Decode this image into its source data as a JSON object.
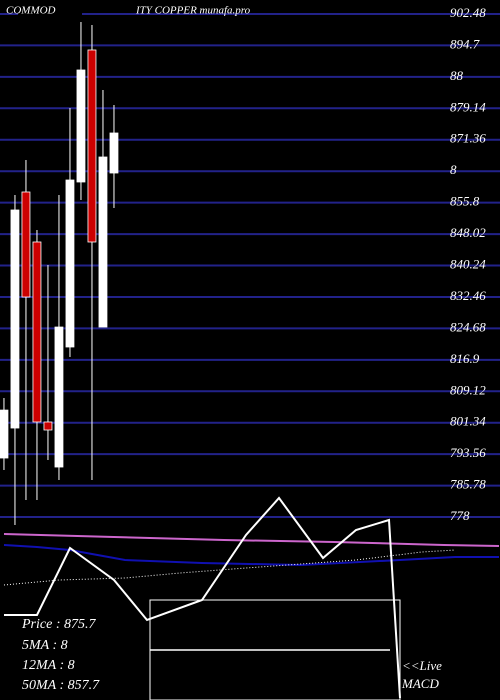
{
  "chart_data": {
    "type": "candlestick",
    "title": [
      "COMMOD",
      "ITY COPPER munafa.pro"
    ],
    "x": [
      0,
      1,
      2,
      3,
      4,
      5,
      6,
      7,
      8,
      9,
      10
    ],
    "open": [
      792.61,
      800.03,
      858.43,
      846.06,
      801.52,
      790.38,
      820.08,
      860.91,
      893.57,
      825.02,
      863.13
    ],
    "close": [
      804.47,
      853.98,
      832.45,
      801.52,
      799.54,
      825.02,
      861.4,
      888.62,
      846.06,
      867.09,
      873.03
    ],
    "high": [
      807.46,
      857.69,
      866.35,
      849.03,
      840.37,
      857.69,
      879.22,
      905.94,
      899.76,
      883.67,
      879.96
    ],
    "low": [
      789.64,
      776.03,
      782.21,
      782.21,
      792.11,
      787.16,
      817.6,
      856.45,
      787.16,
      825.02,
      854.47
    ],
    "up_color": "#ffffff",
    "down_color": "#cc0000",
    "lines": [
      {
        "color": "#cc66cc",
        "style": "solid",
        "x": [
          0,
          10,
          20,
          30,
          40,
          45
        ],
        "values": [
          773.8,
          773.06,
          772.32,
          771.82,
          771.08,
          770.83
        ]
      },
      {
        "color": "#1010b0",
        "style": "solid",
        "x": [
          0,
          3,
          6,
          9,
          11,
          18,
          27,
          36,
          41,
          45
        ],
        "values": [
          771.08,
          770.58,
          769.84,
          768.36,
          767.37,
          766.62,
          766.13,
          767.37,
          768.11,
          768.11
        ]
      },
      {
        "color": "#ffffff",
        "style": "dotted",
        "x": [
          0,
          5,
          11,
          16,
          22,
          32,
          38,
          41
        ],
        "values": [
          761.18,
          762.42,
          762.91,
          764.15,
          765.39,
          767.37,
          769.35,
          769.84
        ]
      },
      {
        "color": "#ffffff",
        "style": "solid",
        "x": [
          0,
          3,
          6,
          10,
          13,
          18,
          22,
          25,
          29,
          32,
          35,
          36
        ],
        "values": [
          753.76,
          753.76,
          770.34,
          762.42,
          752.52,
          757.47,
          773.55,
          782.71,
          767.86,
          774.79,
          777.27,
          733.22
        ]
      }
    ],
    "xlim": [
      -0.36,
      45.09
    ],
    "ylim": [
      732.73,
      905.94
    ],
    "yticks": [
      902.48,
      894.7,
      {
        "value": 886.92,
        "label": "88"
      },
      879.14,
      871.36,
      {
        "value": 863.58,
        "label": "8"
      },
      855.8,
      848.02,
      840.24,
      832.46,
      824.68,
      816.9,
      809.12,
      801.34,
      793.56,
      785.78,
      778
    ],
    "grid": true,
    "grid_color": "#22228a"
  },
  "info_panel": [
    "Price  :  875.7",
    "5MA : 8",
    "12MA : 8",
    "50MA : 857.7"
  ],
  "macd_label": [
    "<<Live",
    "MACD"
  ]
}
